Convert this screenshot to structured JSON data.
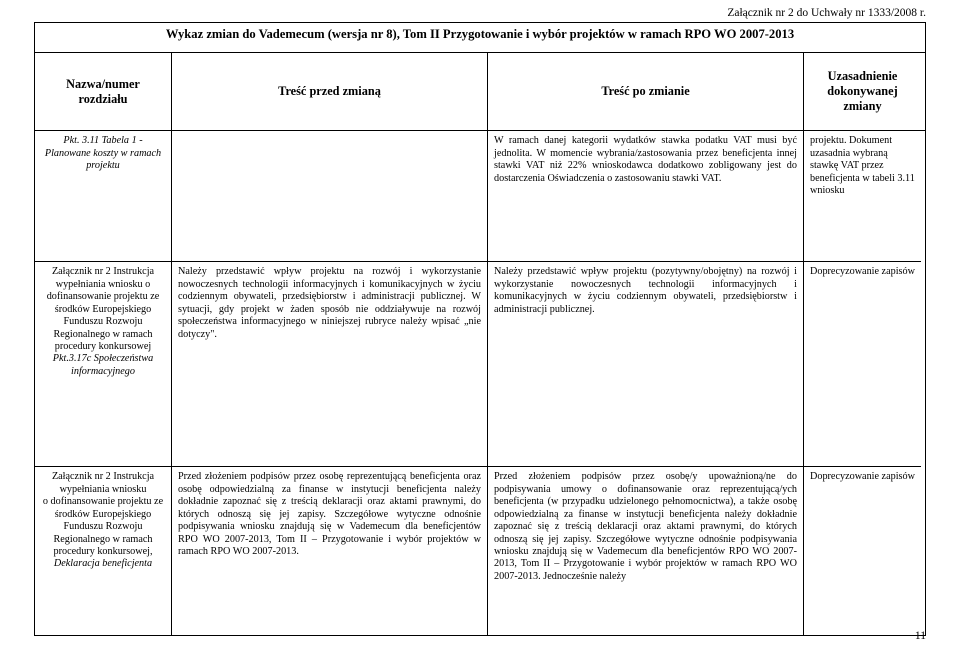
{
  "top_right": "Załącznik nr 2 do Uchwały nr 1333/2008 r.",
  "header_title": "Wykaz zmian do Vademecum (wersja nr 8), Tom II Przygotowanie i wybór projektów w ramach RPO WO 2007-2013",
  "columns": {
    "c1": "Nazwa/numer rozdziału",
    "c2": "Treść przed zmianą",
    "c3": "Treść po zmianie",
    "c4": "Uzasadnienie dokonywanej zmiany"
  },
  "rows": [
    {
      "c1": "Pkt. 3.11 Tabela 1 - Planowane koszty w ramach projektu",
      "c2": "",
      "c3": "W ramach danej kategorii wydatków stawka podatku VAT musi być jednolita.\n W momencie wybrania/zastosowania przez beneficjenta innej stawki VAT niż 22% wnioskodawca dodatkowo zobligowany jest do dostarczenia Oświadczenia o zastosowaniu stawki VAT.",
      "c4": "projektu.\nDokument uzasadnia wybraną stawkę VAT przez beneficjenta w tabeli 3.11 wniosku"
    },
    {
      "c1": "Załącznik nr 2 Instrukcja wypełniania wniosku o dofinansowanie projektu ze środków Europejskiego Funduszu Rozwoju Regionalnego w ramach procedury konkursowej\nPkt.3.17c Społeczeństwa informacyjnego",
      "c2": "Należy przedstawić wpływ projektu na rozwój i wykorzystanie nowoczesnych technologii informacyjnych i komunikacyjnych w życiu codziennym obywateli, przedsiębiorstw i administracji publicznej. W sytuacji, gdy projekt w żaden sposób nie oddziaływuje na rozwój społeczeństwa informacyjnego w niniejszej rubryce należy wpisać „nie dotyczy\".",
      "c3": "Należy przedstawić wpływ projektu (pozytywny/obojętny) na rozwój i wykorzystanie nowoczesnych technologii informacyjnych i komunikacyjnych w życiu codziennym obywateli, przedsiębiorstw i administracji publicznej.",
      "c4": "Doprecyzowanie zapisów"
    },
    {
      "c1": "Załącznik nr 2 Instrukcja wypełniania wniosku\no dofinansowanie projektu ze środków Europejskiego Funduszu Rozwoju Regionalnego w ramach procedury konkursowej,\nDeklaracja beneficjenta",
      "c2": "Przed złożeniem podpisów przez osobę reprezentującą beneficjenta oraz osobę odpowiedzialną za finanse w instytucji beneficjenta należy dokładnie zapoznać się z treścią deklaracji oraz aktami prawnymi, do których odnoszą się jej zapisy.\nSzczegółowe wytyczne odnośnie podpisywania wniosku znajdują się w Vademecum dla beneficjentów RPO WO 2007-2013, Tom II – Przygotowanie i wybór projektów w ramach RPO WO 2007-2013.",
      "c3": "Przed złożeniem podpisów przez osobę/y upoważnioną/ne do podpisywania umowy o dofinansowanie oraz reprezentującą/ych beneficjenta (w przypadku udzielonego pełnomocnictwa), a także osobę odpowiedzialną za finanse w instytucji beneficjenta należy dokładnie zapoznać się z treścią deklaracji oraz aktami prawnymi, do których odnoszą się jej zapisy.\nSzczegółowe wytyczne odnośnie podpisywania wniosku znajdują się w Vademecum dla beneficjentów RPO WO 2007-2013, Tom II – Przygotowanie i wybór projektów w ramach RPO WO 2007-2013. Jednocześnie należy",
      "c4": "Doprecyzowanie zapisów"
    }
  ],
  "page_number": "11"
}
